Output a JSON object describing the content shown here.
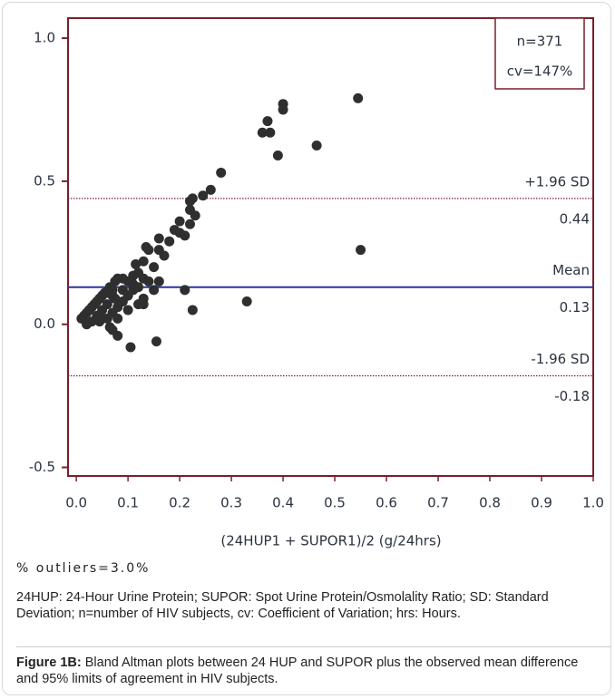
{
  "chart_data": {
    "type": "scatter",
    "x_label": "(24HUP1 + SUPOR1)/2   (g/24hrs)",
    "xlim": [
      -0.016,
      1.0
    ],
    "ylim": [
      -0.53,
      1.07
    ],
    "xticks": [
      {
        "value": 0,
        "label": "0.0"
      },
      0.1,
      0.2,
      0.3,
      0.4,
      0.5,
      0.6,
      0.7,
      0.8,
      0.9,
      {
        "value": 1,
        "label": "1.0"
      }
    ],
    "yticks": [
      {
        "value": -0.5,
        "label": "-0.5"
      },
      {
        "value": 0,
        "label": "0.0"
      },
      0.5,
      {
        "value": 1,
        "label": "1.0"
      }
    ],
    "color": "#2f2f2f",
    "frame_color": "#7a1f2b",
    "annotations": [
      "n=371",
      "cv=147%"
    ],
    "reference_lines": [
      {
        "name": "+1.96 SD",
        "value": 0.44,
        "color": "#7a1f2b",
        "style": "dotted"
      },
      {
        "name": "Mean",
        "value": 0.13,
        "color": "#2a35a0",
        "style": "solid"
      },
      {
        "name": "-1.96 SD",
        "value": -0.18,
        "color": "#7a1f2b",
        "style": "dotted"
      }
    ],
    "x": [
      0.4,
      0.4,
      0.37,
      0.36,
      0.375,
      0.39,
      0.465,
      0.545,
      0.55,
      0.33,
      0.28,
      0.26,
      0.245,
      0.225,
      0.22,
      0.22,
      0.23,
      0.2,
      0.2,
      0.21,
      0.22,
      0.18,
      0.19,
      0.16,
      0.14,
      0.135,
      0.17,
      0.16,
      0.13,
      0.115,
      0.12,
      0.13,
      0.11,
      0.1,
      0.09,
      0.08,
      0.075,
      0.07,
      0.06,
      0.05,
      0.04,
      0.03,
      0.02,
      0.01,
      0.015,
      0.025,
      0.035,
      0.045,
      0.055,
      0.065,
      0.07,
      0.06,
      0.05,
      0.04,
      0.03,
      0.05,
      0.07,
      0.08,
      0.09,
      0.1,
      0.11,
      0.12,
      0.14,
      0.15,
      0.13,
      0.12,
      0.1,
      0.08,
      0.07,
      0.08,
      0.065,
      0.105,
      0.155,
      0.21,
      0.225,
      0.13,
      0.16,
      0.15,
      0.02,
      0.045,
      0.06,
      0.09,
      0.11,
      0.075
    ],
    "values": [
      0.77,
      0.75,
      0.71,
      0.67,
      0.67,
      0.59,
      0.625,
      0.79,
      0.26,
      0.08,
      0.53,
      0.47,
      0.45,
      0.44,
      0.43,
      0.4,
      0.38,
      0.36,
      0.32,
      0.31,
      0.35,
      0.29,
      0.33,
      0.3,
      0.26,
      0.27,
      0.24,
      0.26,
      0.22,
      0.21,
      0.18,
      0.16,
      0.17,
      0.15,
      0.16,
      0.16,
      0.15,
      0.12,
      0.11,
      0.1,
      0.08,
      0.06,
      0.04,
      0.02,
      0.03,
      0.05,
      0.07,
      0.09,
      0.11,
      0.13,
      0.1,
      0.07,
      0.05,
      0.03,
      0.01,
      0.02,
      0.04,
      0.06,
      0.08,
      0.1,
      0.12,
      0.13,
      0.15,
      0.12,
      0.09,
      0.07,
      0.05,
      0.02,
      -0.02,
      -0.04,
      -0.01,
      -0.08,
      -0.06,
      0.12,
      0.05,
      0.07,
      0.15,
      0.2,
      0.0,
      0.01,
      0.02,
      0.12,
      0.14,
      0.09
    ]
  },
  "notes": {
    "outliers": "% outliers=3.0%",
    "abbreviations": "24HUP: 24-Hour Urine Protein; SUPOR: Spot Urine Protein/Osmolality Ratio; SD: Standard Deviation; n=number of HIV subjects, cv: Coefficient of Variation; hrs: Hours.",
    "figure_label": "Figure 1B:",
    "figure_caption": "Bland Altman plots between 24 HUP and SUPOR plus the observed mean difference and 95% limits of agreement in HIV subjects."
  }
}
